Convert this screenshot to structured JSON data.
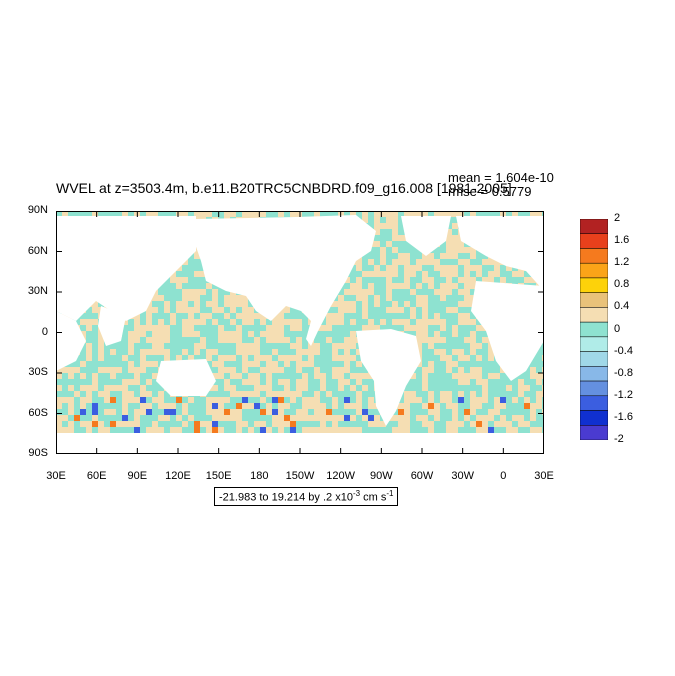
{
  "title": "WVEL at z=3503.4m, b.e11.B20TRC5CNBDRD.f09_g16.008 [1981-2005]",
  "stats": {
    "mean": "mean = 1.604e-10",
    "rmse": "rmse = 0.5779"
  },
  "range_label_prefix": "-21.983 to 19.214 by .2 x10",
  "range_label_exp": "-3",
  "range_label_units": " cm s",
  "range_label_units_exp": "-1",
  "lat_labels": [
    "90N",
    "60N",
    "30N",
    "0",
    "30S",
    "60S",
    "90S"
  ],
  "lon_labels": [
    "30E",
    "60E",
    "90E",
    "120E",
    "150E",
    "180",
    "150W",
    "120W",
    "90W",
    "60W",
    "30W",
    "0",
    "30E"
  ],
  "colorbar": {
    "labels": [
      "2",
      "1.6",
      "1.2",
      "0.8",
      "0.4",
      "0",
      "-0.4",
      "-0.8",
      "-1.2",
      "-1.6",
      "-2"
    ],
    "colors": [
      "#b22222",
      "#e8401c",
      "#f57a1e",
      "#fba418",
      "#fdd20a",
      "#e9c27a",
      "#f5deb3",
      "#8ee2d0",
      "#b0ece8",
      "#a0d8e8",
      "#88b8e8",
      "#6490e0",
      "#3b5ee0",
      "#1030d0",
      "#4a3bd0"
    ]
  },
  "colors": {
    "ocean_neutral": "#f5deb3",
    "ocean_slight_neg": "#8ee2d0",
    "land": "#ffffff"
  }
}
